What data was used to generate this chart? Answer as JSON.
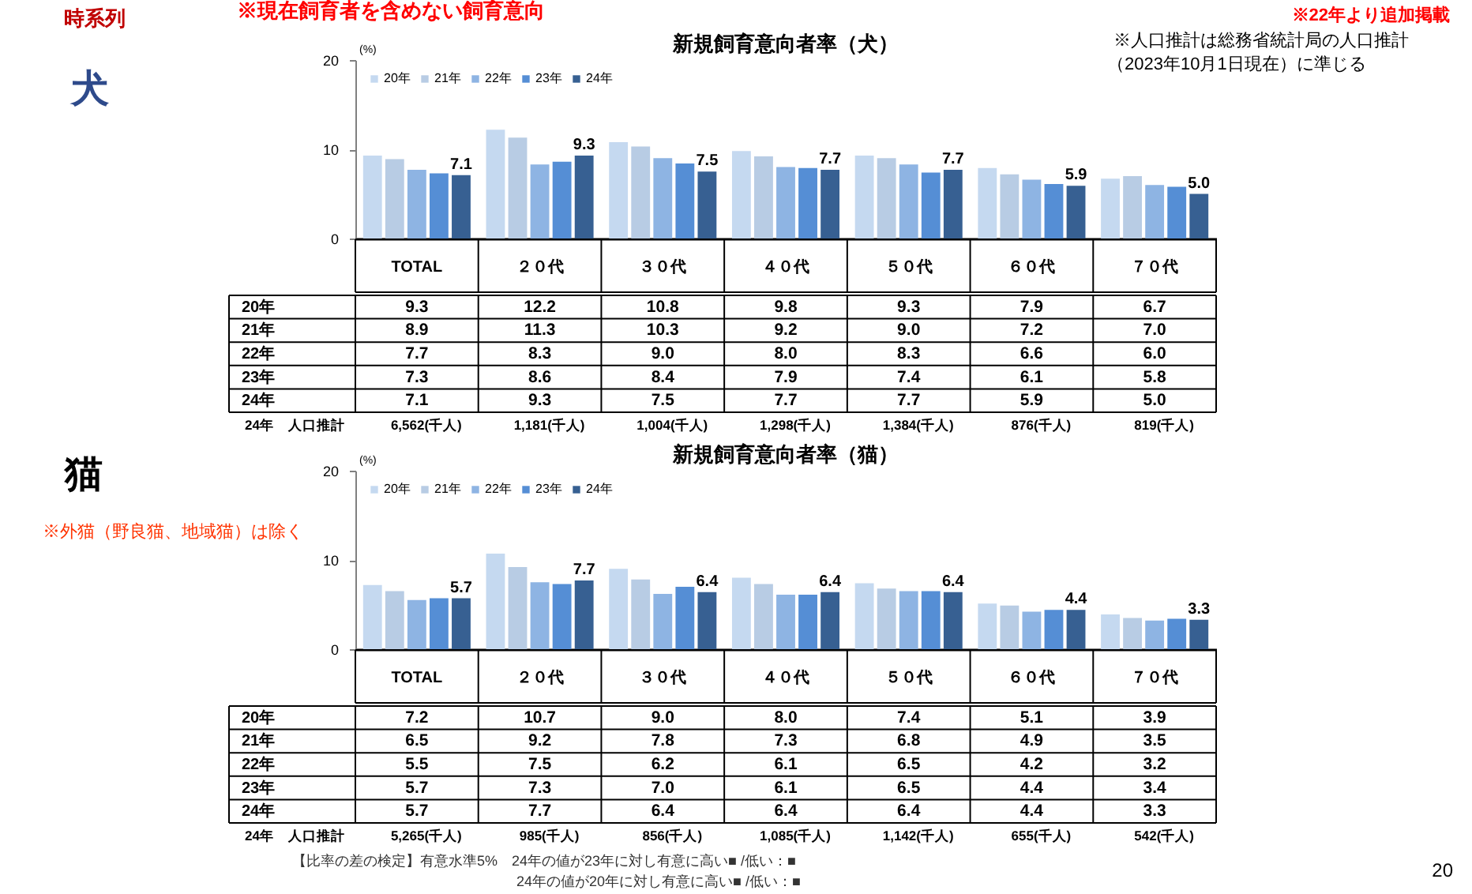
{
  "chart_data": [
    {
      "type": "bar",
      "title": "新規飼育意向者率（犬）",
      "ylabel": "(%)",
      "categories": [
        "TOTAL",
        "２０代",
        "３０代",
        "４０代",
        "５０代",
        "６０代",
        "７０代"
      ],
      "series": [
        {
          "name": "20年",
          "color": "#c5d9f0",
          "values": [
            9.3,
            12.2,
            10.8,
            9.8,
            9.3,
            7.9,
            6.7
          ],
          "value_labels": [
            "9.3",
            "12.2",
            "10.8",
            "9.8",
            "9.3",
            "7.9",
            "6.7"
          ]
        },
        {
          "name": "21年",
          "color": "#b8cce4",
          "values": [
            8.9,
            11.3,
            10.3,
            9.2,
            9.0,
            7.2,
            7.0
          ],
          "value_labels": [
            "8.9",
            "11.3",
            "10.3",
            "9.2",
            "9.0",
            "7.2",
            "7.0"
          ]
        },
        {
          "name": "22年",
          "color": "#8eb4e3",
          "values": [
            7.7,
            8.3,
            9.0,
            8.0,
            8.3,
            6.6,
            6.0
          ],
          "value_labels": [
            "7.7",
            "8.3",
            "9.0",
            "8.0",
            "8.3",
            "6.6",
            "6.0"
          ]
        },
        {
          "name": "23年",
          "color": "#558ed5",
          "values": [
            7.3,
            8.6,
            8.4,
            7.9,
            7.4,
            6.1,
            5.8
          ],
          "value_labels": [
            "7.3",
            "8.6",
            "8.4",
            "7.9",
            "7.4",
            "6.1",
            "5.8"
          ]
        },
        {
          "name": "24年",
          "color": "#376092",
          "values": [
            7.1,
            9.3,
            7.5,
            7.7,
            7.7,
            5.9,
            5.0
          ],
          "value_labels": [
            "7.1",
            "9.3",
            "7.5",
            "7.7",
            "7.7",
            "5.9",
            "5.0"
          ]
        }
      ],
      "ylim": [
        0,
        20
      ],
      "yticks": [
        0,
        10,
        20
      ],
      "legend": "top left",
      "annotations": [
        "※現在飼育者を含めない飼育意向",
        "※22年より追加掲載",
        "※人口推計は総務省統計局の人口推計",
        "（2023年10月1日現在）に準じる",
        "時系列",
        "犬",
        "24年　人口推計",
        "6,562(千人)",
        "1,181(千人)",
        "1,004(千人)",
        "1,298(千人)",
        "1,384(千人)",
        "876(千人)",
        "819(千人)",
        {
          "text": "7.1",
          "x": "TOTAL",
          "y": 7.1
        },
        {
          "text": "9.3",
          "x": "２０代",
          "y": 9.3
        },
        "7.5",
        {
          "text": "7.7",
          "x": "４０代",
          "y": 7.7
        },
        {
          "text": "7.7",
          "x": "５０代",
          "y": 7.7
        },
        {
          "text": "5.9",
          "x": "６０代",
          "y": 5.9
        },
        "5.0"
      ]
    },
    {
      "type": "bar",
      "title": "新規飼育意向者率（猫）",
      "ylabel": "(%)",
      "categories": [
        "TOTAL",
        "２０代",
        "３０代",
        "４０代",
        "５０代",
        "６０代",
        "７０代"
      ],
      "series": [
        {
          "name": "20年",
          "color": "#c5d9f0",
          "values": [
            7.2,
            10.7,
            9.0,
            8.0,
            7.4,
            5.1,
            3.9
          ],
          "value_labels": [
            "7.2",
            "10.7",
            "9.0",
            "8.0",
            "7.4",
            "5.1",
            "3.9"
          ]
        },
        {
          "name": "21年",
          "color": "#b8cce4",
          "values": [
            6.5,
            9.2,
            7.8,
            7.3,
            6.8,
            4.9,
            3.5
          ],
          "value_labels": [
            "6.5",
            "9.2",
            "7.8",
            "7.3",
            "6.8",
            "4.9",
            "3.5"
          ]
        },
        {
          "name": "22年",
          "color": "#8eb4e3",
          "values": [
            5.5,
            7.5,
            6.2,
            6.1,
            6.5,
            4.2,
            3.2
          ],
          "value_labels": [
            "5.5",
            "7.5",
            "6.2",
            "6.1",
            "6.5",
            "4.2",
            "3.2"
          ]
        },
        {
          "name": "23年",
          "color": "#558ed5",
          "values": [
            5.7,
            7.3,
            7.0,
            6.1,
            6.5,
            4.4,
            3.4
          ],
          "value_labels": [
            "5.7",
            "7.3",
            "7.0",
            "6.1",
            "6.5",
            "4.4",
            "3.4"
          ]
        },
        {
          "name": "24年",
          "color": "#376092",
          "values": [
            5.7,
            7.7,
            6.4,
            6.4,
            6.4,
            4.4,
            3.3
          ],
          "value_labels": [
            "5.7",
            "7.7",
            "6.4",
            "6.4",
            "6.4",
            "4.4",
            "3.3"
          ]
        }
      ],
      "ylim": [
        0,
        20
      ],
      "yticks": [
        0,
        10,
        20
      ],
      "legend": "top left",
      "annotations": [
        "猫",
        "※外猫（野良猫、地域猫）は除く",
        "24年　人口推計",
        "5,265(千人)",
        "985(千人)",
        "856(千人)",
        "1,085(千人)",
        "1,142(千人)",
        "655(千人)",
        "542(千人)",
        "【比率の差の検定】有意水準5%　24年の値が23年に対し有意に高い■ /低い：■",
        "24年の値が20年に対し有意に高い■ /低い：■",
        "20",
        {
          "text": "5.7",
          "x": "TOTAL",
          "y": 5.7
        },
        {
          "text": "7.7",
          "x": "２０代",
          "y": 7.7
        },
        {
          "text": "6.4",
          "x": "３０代",
          "y": 6.4
        },
        {
          "text": "6.4",
          "x": "４０代",
          "y": 6.4
        },
        {
          "text": "6.4",
          "x": "５０代",
          "y": 6.4
        },
        {
          "text": "4.4",
          "x": "６０代",
          "y": 4.4
        },
        {
          "text": "3.3",
          "x": "７０代",
          "y": 3.3
        }
      ]
    }
  ]
}
